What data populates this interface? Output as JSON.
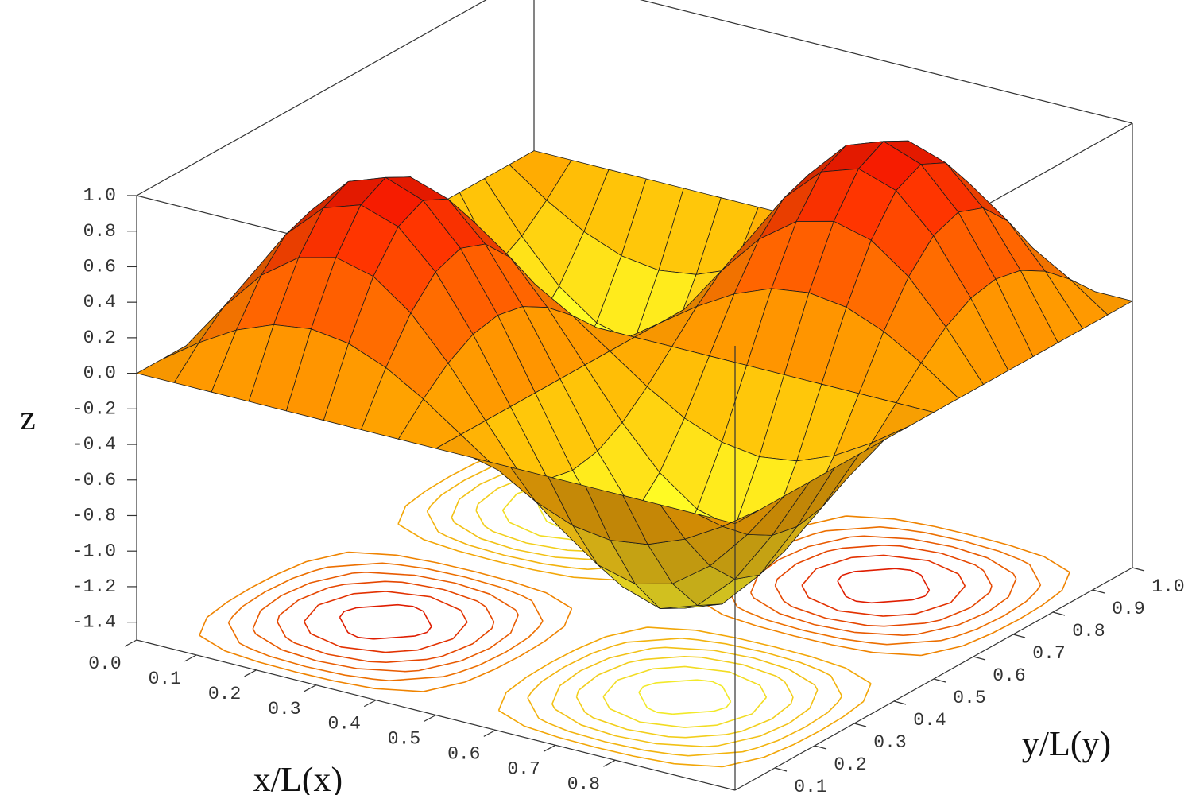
{
  "chart_data": {
    "type": "surface",
    "xlabel": "x/L(x)",
    "ylabel": "y/L(y)",
    "zlabel": "z",
    "xlim": [
      0,
      1
    ],
    "ylim": [
      0,
      1
    ],
    "zlim": [
      -1.5,
      1.0
    ],
    "xticks": [
      {
        "value": 0,
        "label": "0.0"
      },
      0.1,
      0.2,
      0.3,
      0.4,
      0.5,
      0.6,
      0.7,
      0.8
    ],
    "yticks": [
      0.1,
      0.2,
      0.3,
      0.4,
      0.5,
      0.6,
      0.7,
      0.8,
      0.9,
      {
        "value": 1,
        "label": "1.0"
      }
    ],
    "zticks": [
      {
        "value": 1,
        "label": "1.0"
      },
      0.8,
      0.6,
      0.4,
      0.2,
      {
        "value": 0,
        "label": "0.0"
      },
      -0.2,
      -0.4,
      -0.6,
      -0.8,
      {
        "value": -1,
        "label": "-1.0"
      },
      -1.2,
      -1.4
    ],
    "colormap": [
      "#ffff30",
      "#ffa000",
      "#e81000"
    ],
    "contour_levels": [
      -0.9,
      -0.75,
      -0.6,
      -0.45,
      -0.3,
      -0.15,
      0.15,
      0.3,
      0.45,
      0.6,
      0.75,
      0.9
    ],
    "x": [
      0,
      0.0625,
      0.125,
      0.1875,
      0.25,
      0.3125,
      0.375,
      0.4375,
      0.5,
      0.5625,
      0.625,
      0.6875,
      0.75,
      0.8125,
      0.875,
      0.9375,
      1
    ],
    "y": [
      0,
      0.0625,
      0.125,
      0.1875,
      0.25,
      0.3125,
      0.375,
      0.4375,
      0.5,
      0.5625,
      0.625,
      0.6875,
      0.75,
      0.8125,
      0.875,
      0.9375,
      1
    ],
    "z": [
      [
        0,
        0,
        0,
        0,
        0,
        0,
        0,
        0,
        0,
        0,
        0,
        0,
        0,
        0,
        0,
        0,
        0
      ],
      [
        0,
        0.147,
        0.271,
        0.354,
        0.383,
        0.354,
        0.271,
        0.147,
        0,
        -0.147,
        -0.271,
        -0.354,
        -0.383,
        -0.354,
        -0.271,
        -0.147,
        0
      ],
      [
        0,
        0.271,
        0.5,
        0.653,
        0.707,
        0.653,
        0.5,
        0.271,
        0,
        -0.271,
        -0.5,
        -0.653,
        -0.707,
        -0.653,
        -0.5,
        -0.271,
        0
      ],
      [
        0,
        0.354,
        0.653,
        0.854,
        0.924,
        0.854,
        0.653,
        0.354,
        0,
        -0.354,
        -0.653,
        -0.854,
        -0.924,
        -0.854,
        -0.653,
        -0.354,
        0
      ],
      [
        0,
        0.383,
        0.707,
        0.924,
        1,
        0.924,
        0.707,
        0.383,
        0,
        -0.383,
        -0.707,
        -0.924,
        -1,
        -0.924,
        -0.707,
        -0.383,
        0
      ],
      [
        0,
        0.354,
        0.653,
        0.854,
        0.924,
        0.854,
        0.653,
        0.354,
        0,
        -0.354,
        -0.653,
        -0.854,
        -0.924,
        -0.854,
        -0.653,
        -0.354,
        0
      ],
      [
        0,
        0.271,
        0.5,
        0.653,
        0.707,
        0.653,
        0.5,
        0.271,
        0,
        -0.271,
        -0.5,
        -0.653,
        -0.707,
        -0.653,
        -0.5,
        -0.271,
        0
      ],
      [
        0,
        0.147,
        0.271,
        0.354,
        0.383,
        0.354,
        0.271,
        0.147,
        0,
        -0.147,
        -0.271,
        -0.354,
        -0.383,
        -0.354,
        -0.271,
        -0.147,
        0
      ],
      [
        0,
        0,
        0,
        0,
        0,
        0,
        0,
        0,
        0,
        0,
        0,
        0,
        0,
        0,
        0,
        0,
        0
      ],
      [
        0,
        -0.147,
        -0.271,
        -0.354,
        -0.383,
        -0.354,
        -0.271,
        -0.147,
        0,
        0.147,
        0.271,
        0.354,
        0.383,
        0.354,
        0.271,
        0.147,
        0
      ],
      [
        0,
        -0.271,
        -0.5,
        -0.653,
        -0.707,
        -0.653,
        -0.5,
        -0.271,
        0,
        0.271,
        0.5,
        0.653,
        0.707,
        0.653,
        0.5,
        0.271,
        0
      ],
      [
        0,
        -0.354,
        -0.653,
        -0.854,
        -0.924,
        -0.854,
        -0.653,
        -0.354,
        0,
        0.354,
        0.653,
        0.854,
        0.924,
        0.854,
        0.653,
        0.354,
        0
      ],
      [
        0,
        -0.383,
        -0.707,
        -0.924,
        -1,
        -0.924,
        -0.707,
        -0.383,
        0,
        0.383,
        0.707,
        0.924,
        1,
        0.924,
        0.707,
        0.383,
        0
      ],
      [
        0,
        -0.354,
        -0.653,
        -0.854,
        -0.924,
        -0.854,
        -0.653,
        -0.354,
        0,
        0.354,
        0.653,
        0.854,
        0.924,
        0.854,
        0.653,
        0.354,
        0
      ],
      [
        0,
        -0.271,
        -0.5,
        -0.653,
        -0.707,
        -0.653,
        -0.5,
        -0.271,
        0,
        0.271,
        0.5,
        0.653,
        0.707,
        0.653,
        0.5,
        0.271,
        0
      ],
      [
        0,
        -0.147,
        -0.271,
        -0.354,
        -0.383,
        -0.354,
        -0.271,
        -0.147,
        0,
        0.147,
        0.271,
        0.354,
        0.383,
        0.354,
        0.271,
        0.147,
        0
      ],
      [
        0,
        0,
        0,
        0,
        0,
        0,
        0,
        0,
        0,
        0,
        0,
        0,
        0,
        0,
        0,
        0,
        0
      ]
    ]
  }
}
